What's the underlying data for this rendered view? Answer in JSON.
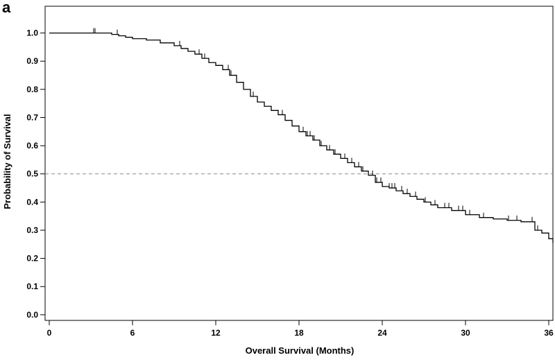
{
  "chart_data": {
    "type": "line",
    "panel_label": "a",
    "xlabel": "Overall Survival (Months)",
    "ylabel": "Probability of Survival",
    "xlim": [
      -0.3,
      36.3
    ],
    "ylim": [
      -0.02,
      1.095
    ],
    "xticks": [
      0,
      6,
      12,
      18,
      24,
      30,
      36
    ],
    "yticks": [
      0.0,
      0.1,
      0.2,
      0.3,
      0.4,
      0.5,
      0.6,
      0.7,
      0.8,
      0.9,
      1.0
    ],
    "ytick_labels": [
      "0.0",
      "0.1",
      "0.2",
      "0.3",
      "0.4",
      "0.5",
      "0.6",
      "0.7",
      "0.8",
      "0.9",
      "1.0"
    ],
    "reference_line": {
      "y": 0.5,
      "style": "dashed"
    },
    "grid": false,
    "series": [
      {
        "style": "step",
        "x": [
          0,
          4.5,
          5,
          5.5,
          6,
          7,
          8,
          9,
          9.5,
          10,
          10.5,
          11,
          11.5,
          12,
          12.5,
          13,
          13.5,
          14,
          14.5,
          15,
          15.5,
          16,
          16.5,
          17,
          17.5,
          18,
          18.5,
          19,
          19.5,
          20,
          20.5,
          21,
          21.5,
          22,
          22.5,
          23,
          23.5,
          24,
          24.5,
          25,
          25.5,
          26,
          26.5,
          27,
          27.5,
          28,
          29,
          30,
          31,
          32,
          33,
          34,
          35,
          35.5,
          36,
          36.3
        ],
        "y": [
          1.0,
          0.995,
          0.99,
          0.985,
          0.98,
          0.975,
          0.965,
          0.955,
          0.945,
          0.935,
          0.925,
          0.91,
          0.895,
          0.885,
          0.87,
          0.85,
          0.825,
          0.8,
          0.775,
          0.755,
          0.74,
          0.725,
          0.71,
          0.69,
          0.67,
          0.65,
          0.635,
          0.62,
          0.6,
          0.585,
          0.57,
          0.555,
          0.54,
          0.525,
          0.51,
          0.495,
          0.47,
          0.455,
          0.45,
          0.44,
          0.43,
          0.42,
          0.41,
          0.4,
          0.39,
          0.38,
          0.37,
          0.355,
          0.345,
          0.34,
          0.335,
          0.33,
          0.3,
          0.29,
          0.27,
          0.255
        ]
      }
    ],
    "censor_marks": [
      3.2,
      3.3,
      4.9,
      9.4,
      10.8,
      11.2,
      12.9,
      13.1,
      14.7,
      16.5,
      16.8,
      17.5,
      18.3,
      18.6,
      18.8,
      19.1,
      19.6,
      20.2,
      20.6,
      21.3,
      21.8,
      22.3,
      22.6,
      23.3,
      23.6,
      23.9,
      24.5,
      24.7,
      24.9,
      25.4,
      25.8,
      26.4,
      27.1,
      27.8,
      28.5,
      28.8,
      29.5,
      29.8,
      30.3,
      31.3,
      33.1,
      33.7,
      34.8,
      35.2
    ]
  }
}
